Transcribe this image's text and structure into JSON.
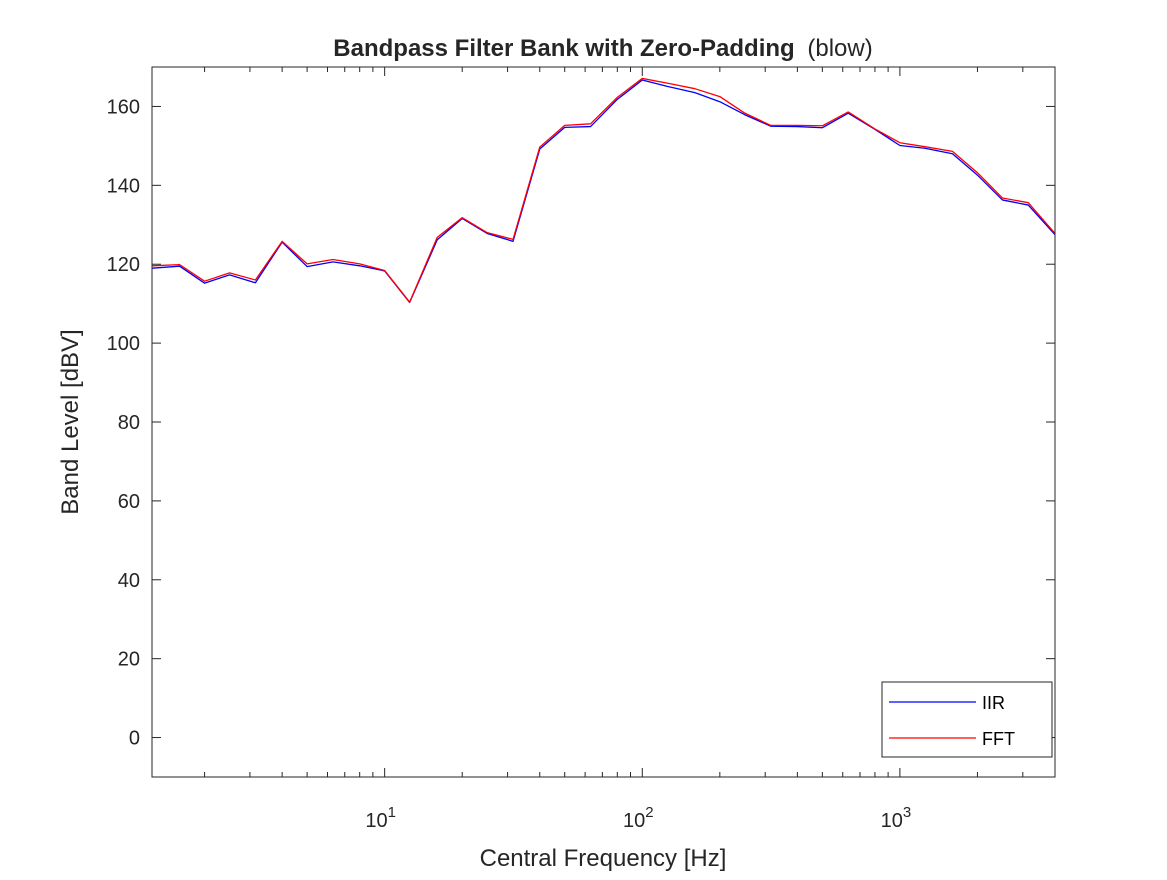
{
  "chart_data": {
    "type": "line",
    "title": "Bandpass Filter Bank with Zero-Padding",
    "title_suffix": "(blow)",
    "xlabel": "Central Frequency [Hz]",
    "ylabel": "Band Level [dBV]",
    "x_scale": "log",
    "xlim": [
      1.25,
      4000
    ],
    "ylim": [
      -10,
      170
    ],
    "yticks": [
      0,
      20,
      40,
      60,
      80,
      100,
      120,
      140,
      160
    ],
    "xticks": [
      {
        "value": 10,
        "base": "10",
        "exp": "1"
      },
      {
        "value": 100,
        "base": "10",
        "exp": "2"
      },
      {
        "value": 1000,
        "base": "10",
        "exp": "3"
      }
    ],
    "grid": false,
    "legend_position": "bottom-right",
    "x": [
      1.25,
      1.6,
      2,
      2.5,
      3.15,
      4,
      5,
      6.3,
      8,
      10,
      12.5,
      16,
      20,
      25,
      31.5,
      40,
      50,
      63,
      80,
      100,
      125,
      160,
      200,
      250,
      315,
      400,
      500,
      630,
      800,
      1000,
      1250,
      1600,
      2000,
      2500,
      3150,
      4000
    ],
    "series": [
      {
        "name": "IIR",
        "color": "#0000ff",
        "values": [
          119,
          119.5,
          115.2,
          117.3,
          115.3,
          125.6,
          119.4,
          120.6,
          119.6,
          118.3,
          110.3,
          126.2,
          131.6,
          127.8,
          125.8,
          149.2,
          154.7,
          154.9,
          161.8,
          166.7,
          165.1,
          163.5,
          161.2,
          157.9,
          155,
          154.9,
          154.6,
          158.3,
          154.2,
          150.1,
          149.4,
          148,
          142.6,
          136.3,
          135,
          127.5
        ]
      },
      {
        "name": "FFT",
        "color": "#ff0000",
        "values": [
          119.6,
          119.9,
          115.7,
          117.8,
          116,
          125.8,
          120.1,
          121.2,
          120.1,
          118.4,
          110.4,
          126.8,
          131.8,
          128,
          126.3,
          149.7,
          155.2,
          155.6,
          162.3,
          167.1,
          165.9,
          164.5,
          162.5,
          158.3,
          155.2,
          155.2,
          155.1,
          158.6,
          154.3,
          150.8,
          149.8,
          148.6,
          143.2,
          136.8,
          135.6,
          127.8
        ]
      }
    ]
  }
}
